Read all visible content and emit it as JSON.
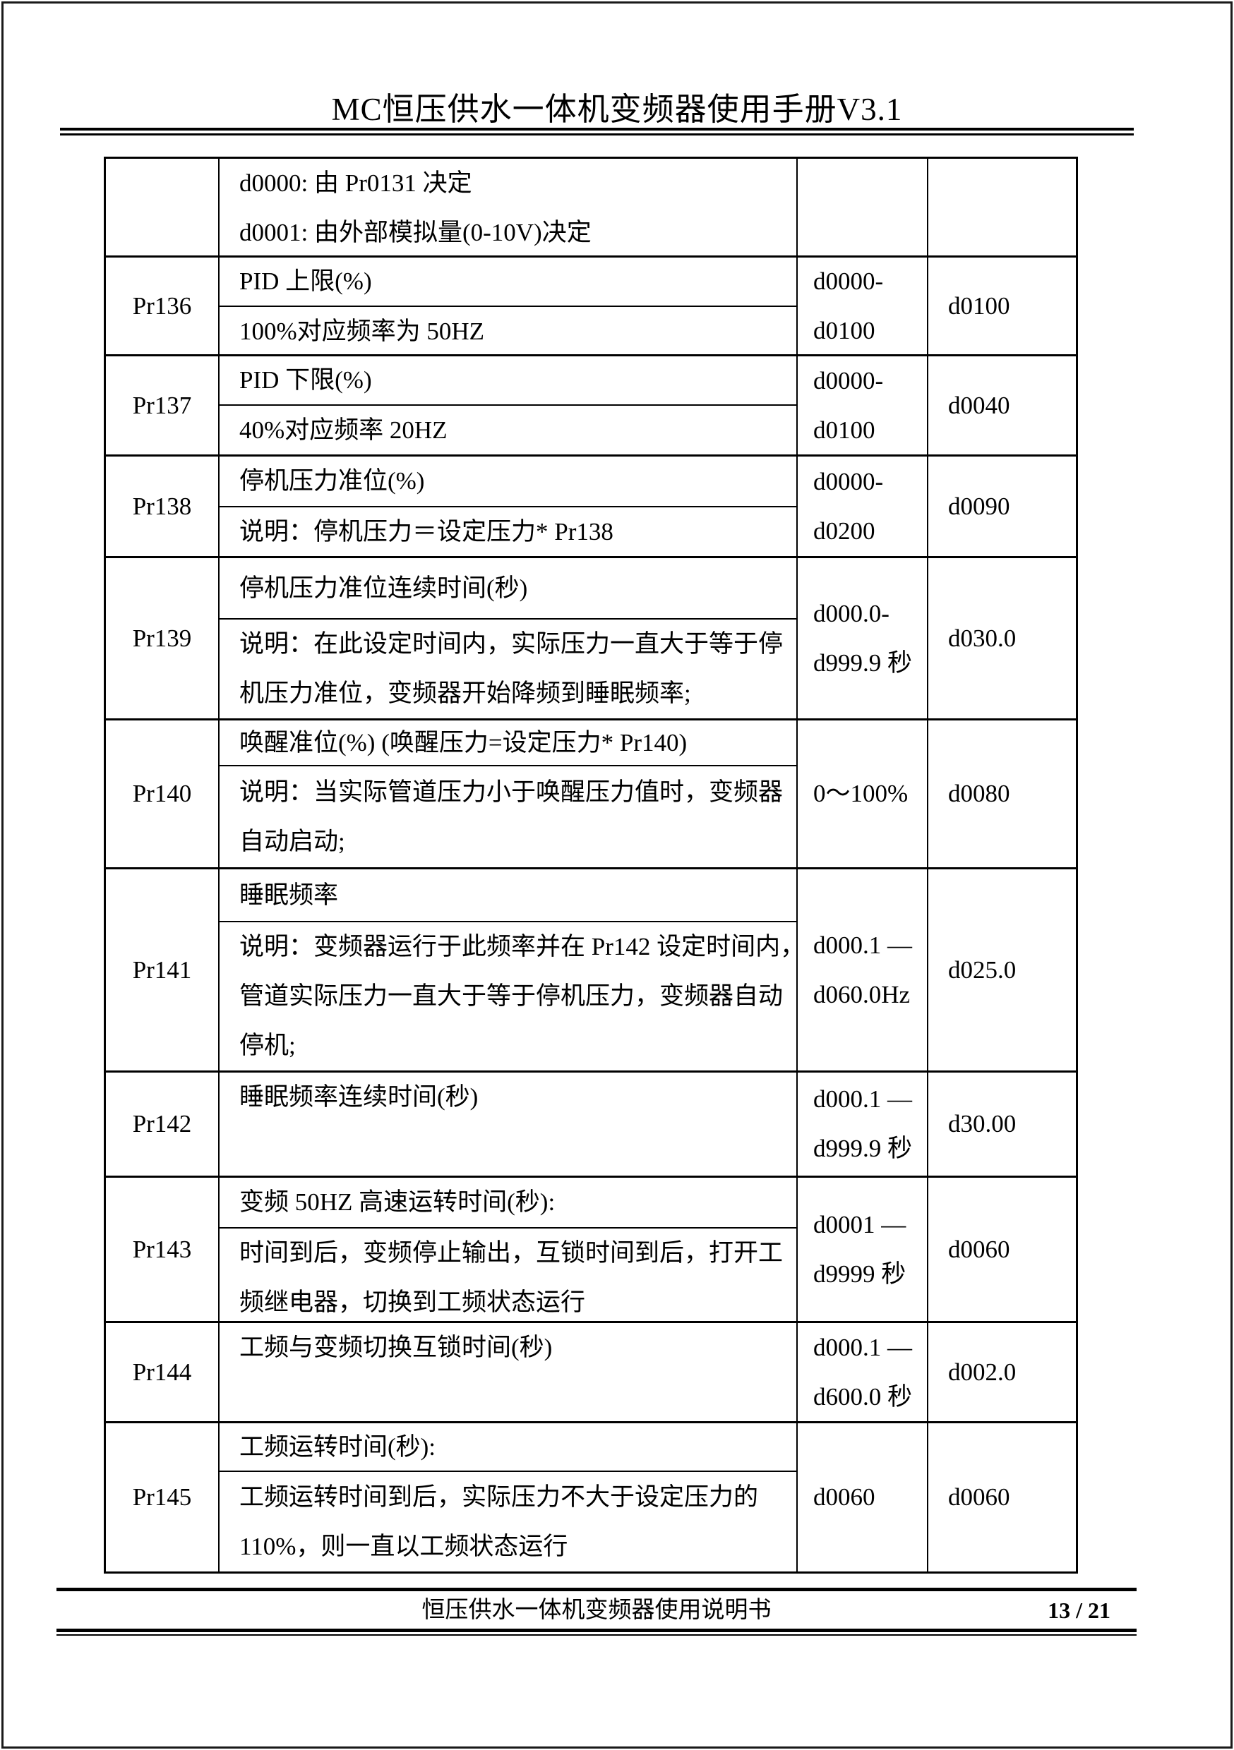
{
  "header": {
    "title": "MC恒压供水一体机变频器使用手册V3.1"
  },
  "table": {
    "rows": [
      {
        "param": "",
        "desc1": [
          "d0000: 由 Pr0131 决定",
          "d0001: 由外部模拟量(0-10V)决定"
        ],
        "desc2": null,
        "range": [],
        "default": ""
      },
      {
        "param": "Pr136",
        "desc1": [
          "PID 上限(%)"
        ],
        "desc2": [
          "100%对应频率为 50HZ"
        ],
        "range": [
          "d0000-",
          "d0100"
        ],
        "default": "d0100"
      },
      {
        "param": "Pr137",
        "desc1": [
          "PID 下限(%)"
        ],
        "desc2": [
          "40%对应频率 20HZ"
        ],
        "range": [
          "d0000-",
          "d0100"
        ],
        "default": "d0040"
      },
      {
        "param": "Pr138",
        "desc1": [
          "停机压力准位(%)"
        ],
        "desc2": [
          "说明：停机压力＝设定压力* Pr138"
        ],
        "range": [
          "d0000-",
          "d0200"
        ],
        "default": "d0090"
      },
      {
        "param": "Pr139",
        "desc1": [
          "停机压力准位连续时间(秒)"
        ],
        "desc2": [
          "说明：在此设定时间内，实际压力一直大于等于停",
          "机压力准位，变频器开始降频到睡眠频率;"
        ],
        "range": [
          "d000.0-",
          "d999.9 秒"
        ],
        "default": "d030.0"
      },
      {
        "param": "Pr140",
        "desc1": [
          "唤醒准位(%) (唤醒压力=设定压力* Pr140)"
        ],
        "desc2": [
          "说明：当实际管道压力小于唤醒压力值时，变频器",
          "自动启动;"
        ],
        "range": [
          "0～100%"
        ],
        "default": "d0080"
      },
      {
        "param": "Pr141",
        "desc1": [
          "睡眠频率"
        ],
        "desc2": [
          "说明：变频器运行于此频率并在 Pr142 设定时间内，",
          "管道实际压力一直大于等于停机压力，变频器自动",
          "停机;"
        ],
        "range": [
          "d000.1 —",
          "d060.0Hz"
        ],
        "default": "d025.0"
      },
      {
        "param": "Pr142",
        "desc1": [
          "睡眠频率连续时间(秒)"
        ],
        "desc2": null,
        "range": [
          "d000.1 —",
          "d999.9 秒"
        ],
        "default": "d30.00"
      },
      {
        "param": "Pr143",
        "desc1": [
          "变频 50HZ 高速运转时间(秒):"
        ],
        "desc2": [
          "时间到后，变频停止输出，互锁时间到后，打开工",
          "频继电器，切换到工频状态运行"
        ],
        "range": [
          "d0001 —",
          "d9999 秒"
        ],
        "default": "d0060"
      },
      {
        "param": "Pr144",
        "desc1": [
          "工频与变频切换互锁时间(秒)"
        ],
        "desc2": null,
        "range": [
          "d000.1 —",
          "d600.0 秒"
        ],
        "default": "d002.0"
      },
      {
        "param": "Pr145",
        "desc1": [
          "工频运转时间(秒):"
        ],
        "desc2": [
          "工频运转时间到后，实际压力不大于设定压力的",
          "110%，则一直以工频状态运行"
        ],
        "range": [
          "d0060"
        ],
        "default": "d0060"
      }
    ]
  },
  "footer": {
    "doc_title": "恒压供水一体机变频器使用说明书",
    "page_number": "13 / 21"
  }
}
